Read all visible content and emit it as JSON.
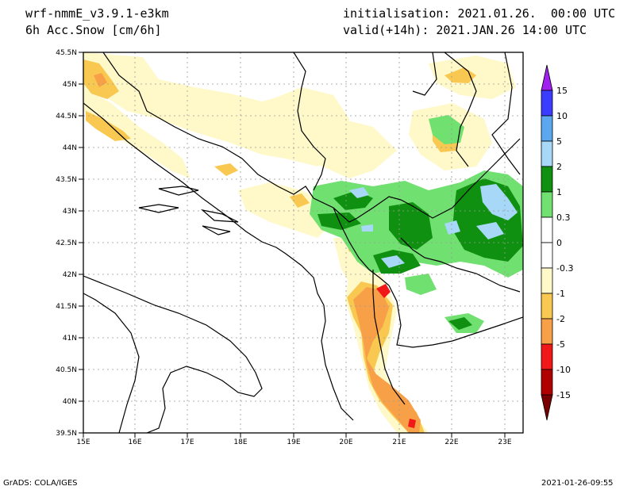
{
  "header": {
    "model": "wrf-nmmE_v3.9.1-e3km",
    "field": "6h Acc.Snow [cm/6h]",
    "init": "initialisation: 2021.01.26.  00:00 UTC",
    "valid": "valid(+14h): 2021.JAN.26 14:00 UTC"
  },
  "footer": {
    "credit": "GrADS: COLA/IGES",
    "timestamp": "2021-01-26-09:55"
  },
  "map": {
    "lon_labels": [
      "15E",
      "16E",
      "17E",
      "18E",
      "19E",
      "20E",
      "21E",
      "22E",
      "23E"
    ],
    "lat_labels": [
      "45.5N",
      "45N",
      "44.5N",
      "44N",
      "43.5N",
      "43N",
      "42.5N",
      "42N",
      "41.5N",
      "41N",
      "40.5N",
      "40N",
      "39.5N"
    ]
  },
  "colorbar": {
    "labels": [
      "15",
      "10",
      "5",
      "2",
      "1",
      "0.3",
      "0",
      "-0.3",
      "-1",
      "-2",
      "-5",
      "-10",
      "-15"
    ],
    "colors": [
      "#a020f0",
      "#3c3cff",
      "#5ba8f0",
      "#a8d8f8",
      "#109010",
      "#70e070",
      "#ffffff",
      "#ffffff",
      "#fff8c8",
      "#f8c850",
      "#f8a048",
      "#f01818",
      "#b00000",
      "#780000"
    ]
  }
}
